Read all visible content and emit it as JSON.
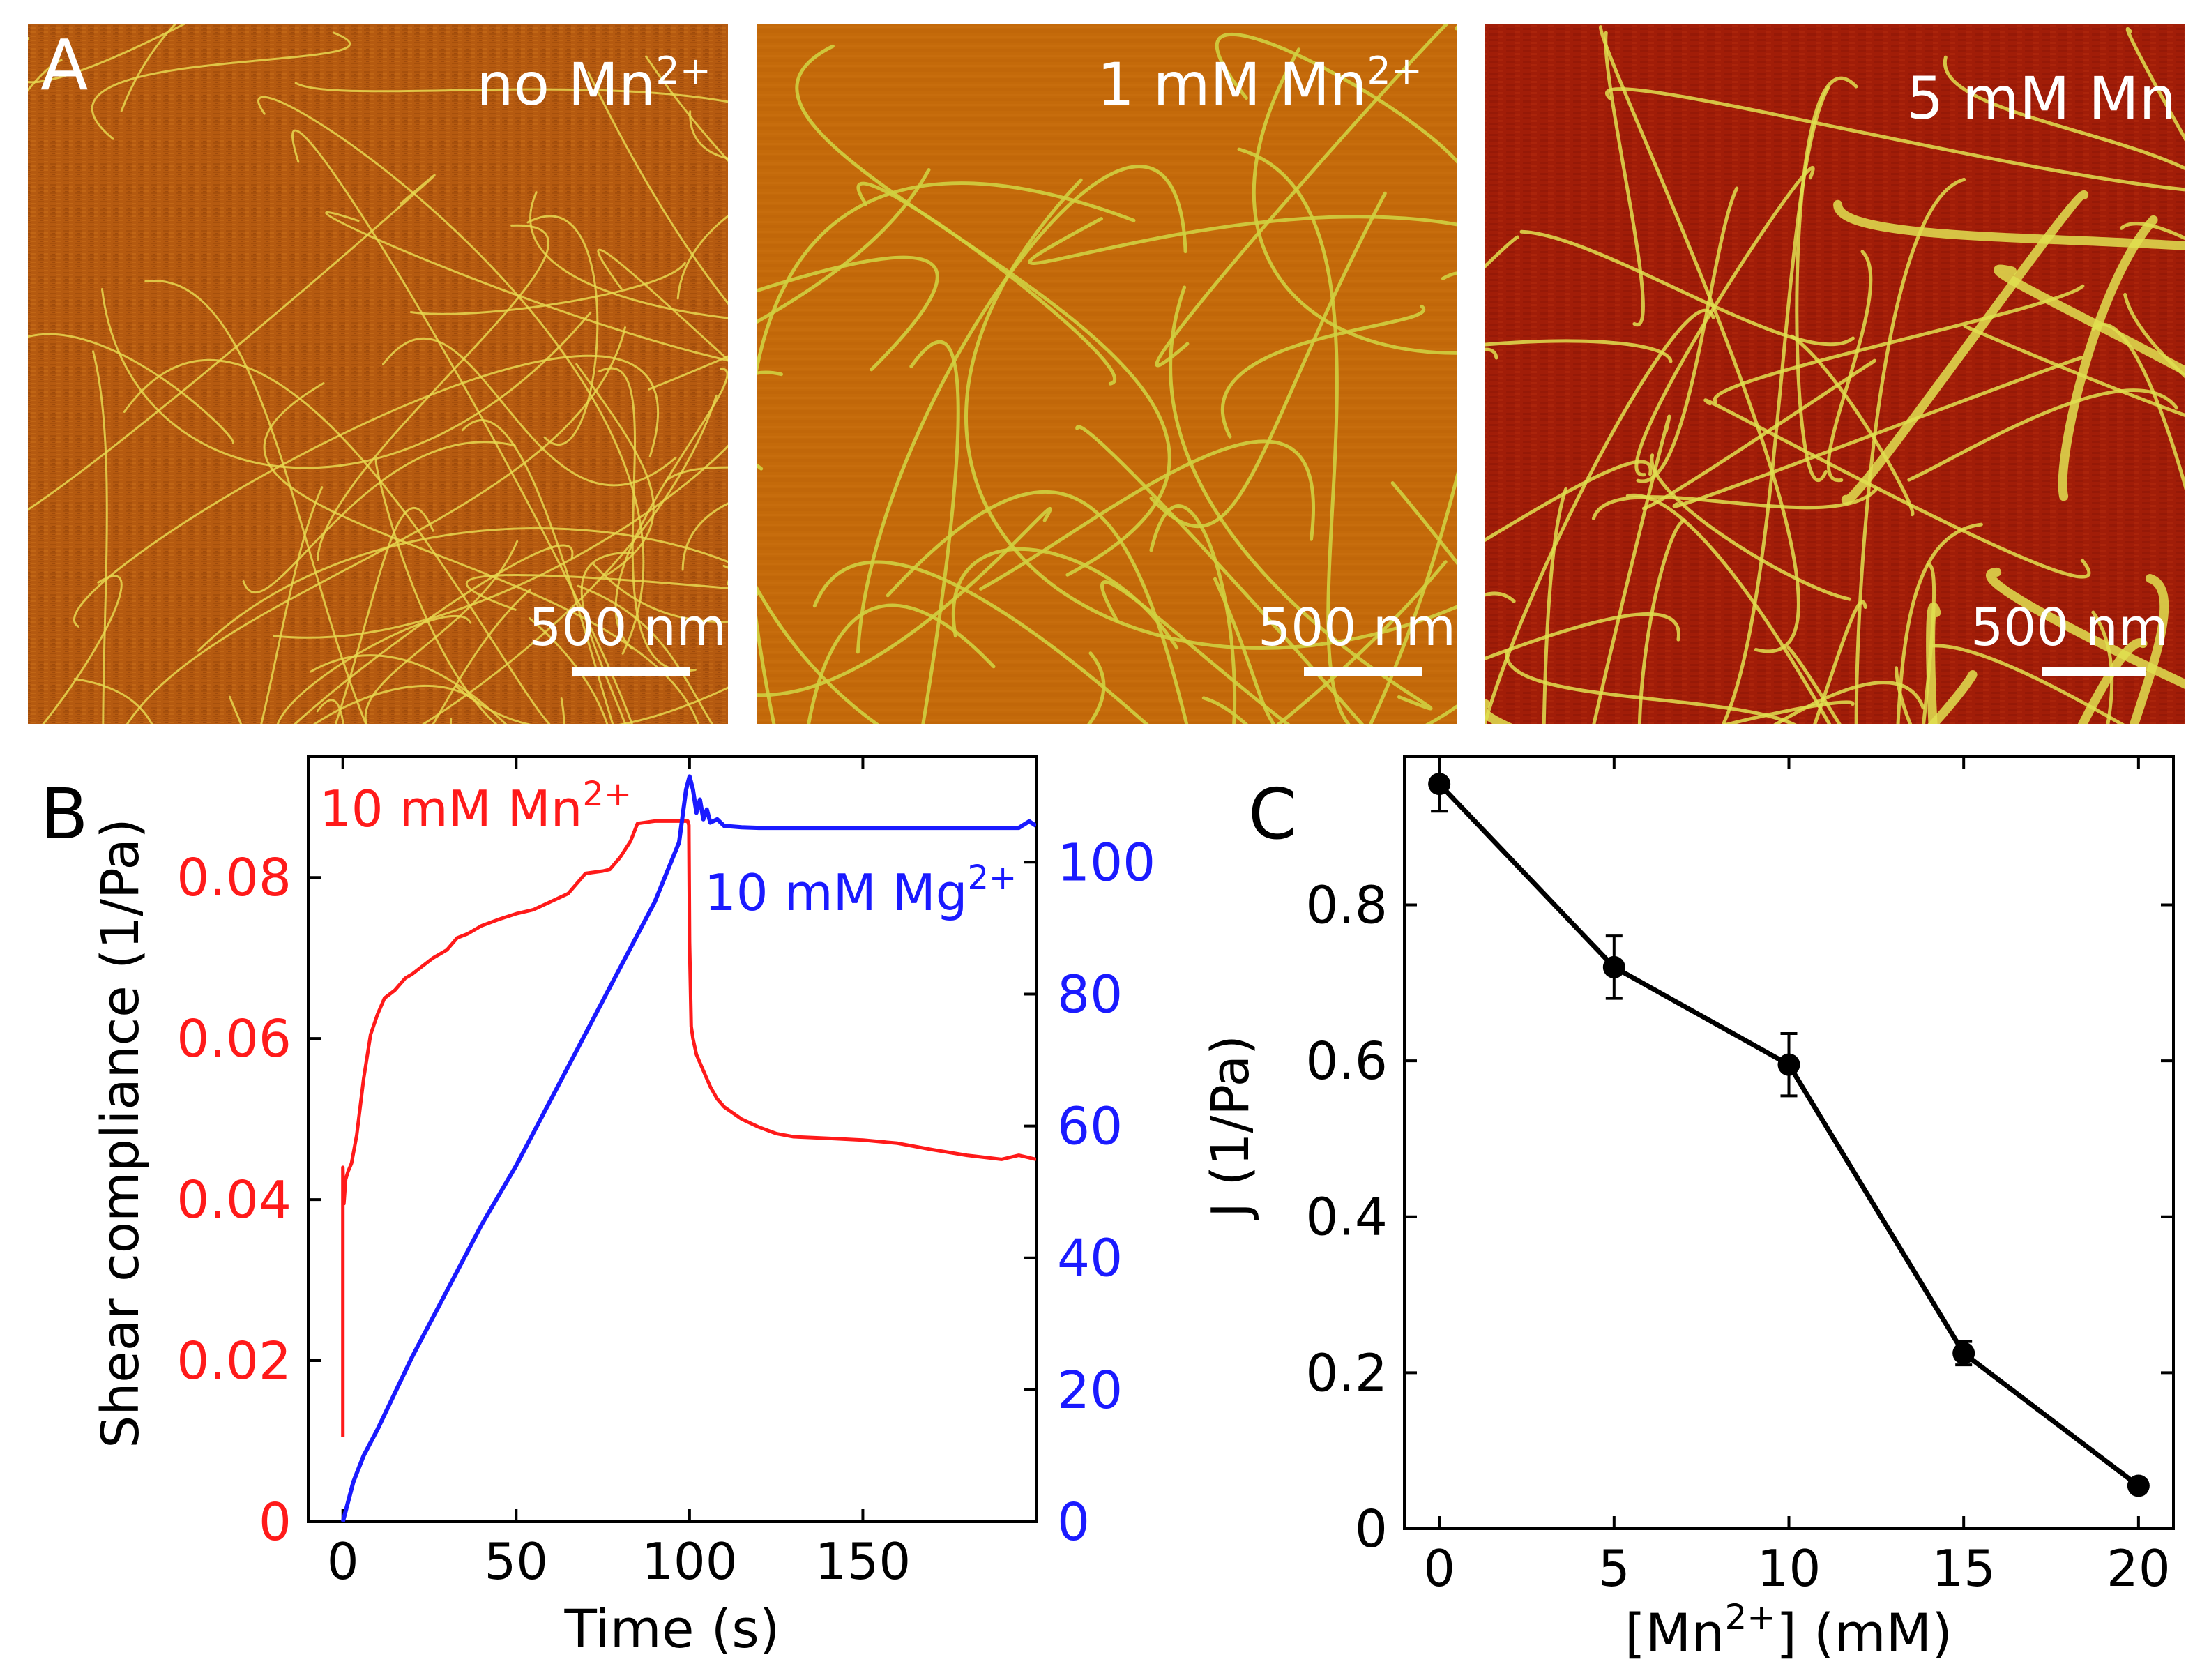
{
  "figure": {
    "panel_a": {
      "letter": "A",
      "images": [
        {
          "label_main": "no Mn",
          "label_sup": "2+",
          "scalebar": "500 nm",
          "style": "dense"
        },
        {
          "label_main": "1 mM Mn",
          "label_sup": "2+",
          "scalebar": "500 nm",
          "style": "smooth"
        },
        {
          "label_main": "5 mM Mn",
          "label_sup": "",
          "scalebar": "500 nm",
          "style": "bundled"
        }
      ]
    },
    "panel_b": {
      "letter": "B"
    },
    "panel_c": {
      "letter": "C"
    }
  },
  "colors": {
    "red": "#ff1a1a",
    "blue": "#1a1aff",
    "black": "#000000",
    "afm_smooth": "#c46a0a",
    "afm_dense": "#b55a10",
    "afm_bundled": "#a11d08",
    "fiber": "#d8d840"
  },
  "chart_data": [
    {
      "type": "line",
      "id": "B",
      "xlabel": "Time (s)",
      "ylabel_left": "Shear compliance (1/Pa)",
      "xlim": [
        -10,
        200
      ],
      "xticks": [
        0,
        50,
        100,
        150
      ],
      "ylim_left": [
        0,
        0.095
      ],
      "yticks_left": [
        0,
        0.02,
        0.04,
        0.06,
        0.08
      ],
      "ytick_labels_left": [
        "0",
        "0.02",
        "0.04",
        "0.06",
        "0.08"
      ],
      "ylim_right": [
        0,
        116
      ],
      "yticks_right": [
        0,
        20,
        40,
        60,
        80,
        100
      ],
      "series": [
        {
          "name_main": "10 mM Mn",
          "name_sup": "2+",
          "axis": "left",
          "color": "#ff1a1a",
          "x": [
            0,
            0,
            0.3,
            0.8,
            1.5,
            2.5,
            4,
            6,
            8,
            10,
            12,
            15,
            18,
            20,
            23,
            26,
            30,
            33,
            36,
            40,
            45,
            50,
            55,
            60,
            65,
            70,
            75,
            77,
            80,
            83,
            85,
            90,
            95,
            99.5,
            99.8,
            100,
            100.5,
            101,
            102,
            104,
            106,
            108,
            110,
            115,
            120,
            125,
            130,
            140,
            150,
            160,
            170,
            180,
            190,
            195,
            200
          ],
          "y": [
            0.0105,
            0.044,
            0.0395,
            0.0425,
            0.0435,
            0.0445,
            0.048,
            0.055,
            0.0605,
            0.063,
            0.065,
            0.066,
            0.0675,
            0.068,
            0.069,
            0.07,
            0.071,
            0.0725,
            0.073,
            0.074,
            0.0748,
            0.0755,
            0.076,
            0.077,
            0.078,
            0.0805,
            0.0808,
            0.081,
            0.0825,
            0.0845,
            0.0867,
            0.087,
            0.087,
            0.087,
            0.0865,
            0.072,
            0.0615,
            0.06,
            0.058,
            0.056,
            0.054,
            0.0525,
            0.0515,
            0.05,
            0.049,
            0.0482,
            0.0478,
            0.0476,
            0.0474,
            0.047,
            0.0462,
            0.0455,
            0.045,
            0.0455,
            0.045
          ]
        },
        {
          "name_main": "10 mM Mg",
          "name_sup": "2+",
          "axis": "right",
          "color": "#1a1aff",
          "x": [
            0,
            1,
            3,
            6,
            10,
            20,
            30,
            40,
            50,
            60,
            70,
            80,
            90,
            97,
            99,
            100,
            101,
            102,
            103,
            104,
            105,
            106,
            108,
            110,
            115,
            120,
            140,
            160,
            180,
            190,
            195,
            198,
            200
          ],
          "y": [
            0,
            2,
            6,
            10,
            14,
            25,
            35,
            45,
            54,
            64,
            74,
            84,
            94,
            103,
            111,
            113,
            111,
            107.5,
            109.5,
            106.5,
            108,
            106,
            106.5,
            105.5,
            105.3,
            105.2,
            105.2,
            105.2,
            105.2,
            105.2,
            105.2,
            106.2,
            105.5
          ]
        }
      ]
    },
    {
      "type": "line",
      "id": "C",
      "xlabel_pre": "[Mn",
      "xlabel_sup": "2+",
      "xlabel_post": "] (mM)",
      "ylabel": "J (1/Pa)",
      "xlim": [
        -1,
        21
      ],
      "ylim": [
        0,
        0.99
      ],
      "xticks": [
        0,
        5,
        10,
        15,
        20
      ],
      "yticks": [
        0,
        0.2,
        0.4,
        0.6,
        0.8
      ],
      "ytick_labels": [
        "0",
        "0.2",
        "0.4",
        "0.6",
        "0.8"
      ],
      "series": [
        {
          "color": "#000000",
          "x": [
            0,
            5,
            10,
            15,
            20
          ],
          "y": [
            0.955,
            0.72,
            0.595,
            0.225,
            0.055
          ],
          "err": [
            0.035,
            0.04,
            0.04,
            0.015,
            0.008
          ]
        }
      ]
    }
  ]
}
